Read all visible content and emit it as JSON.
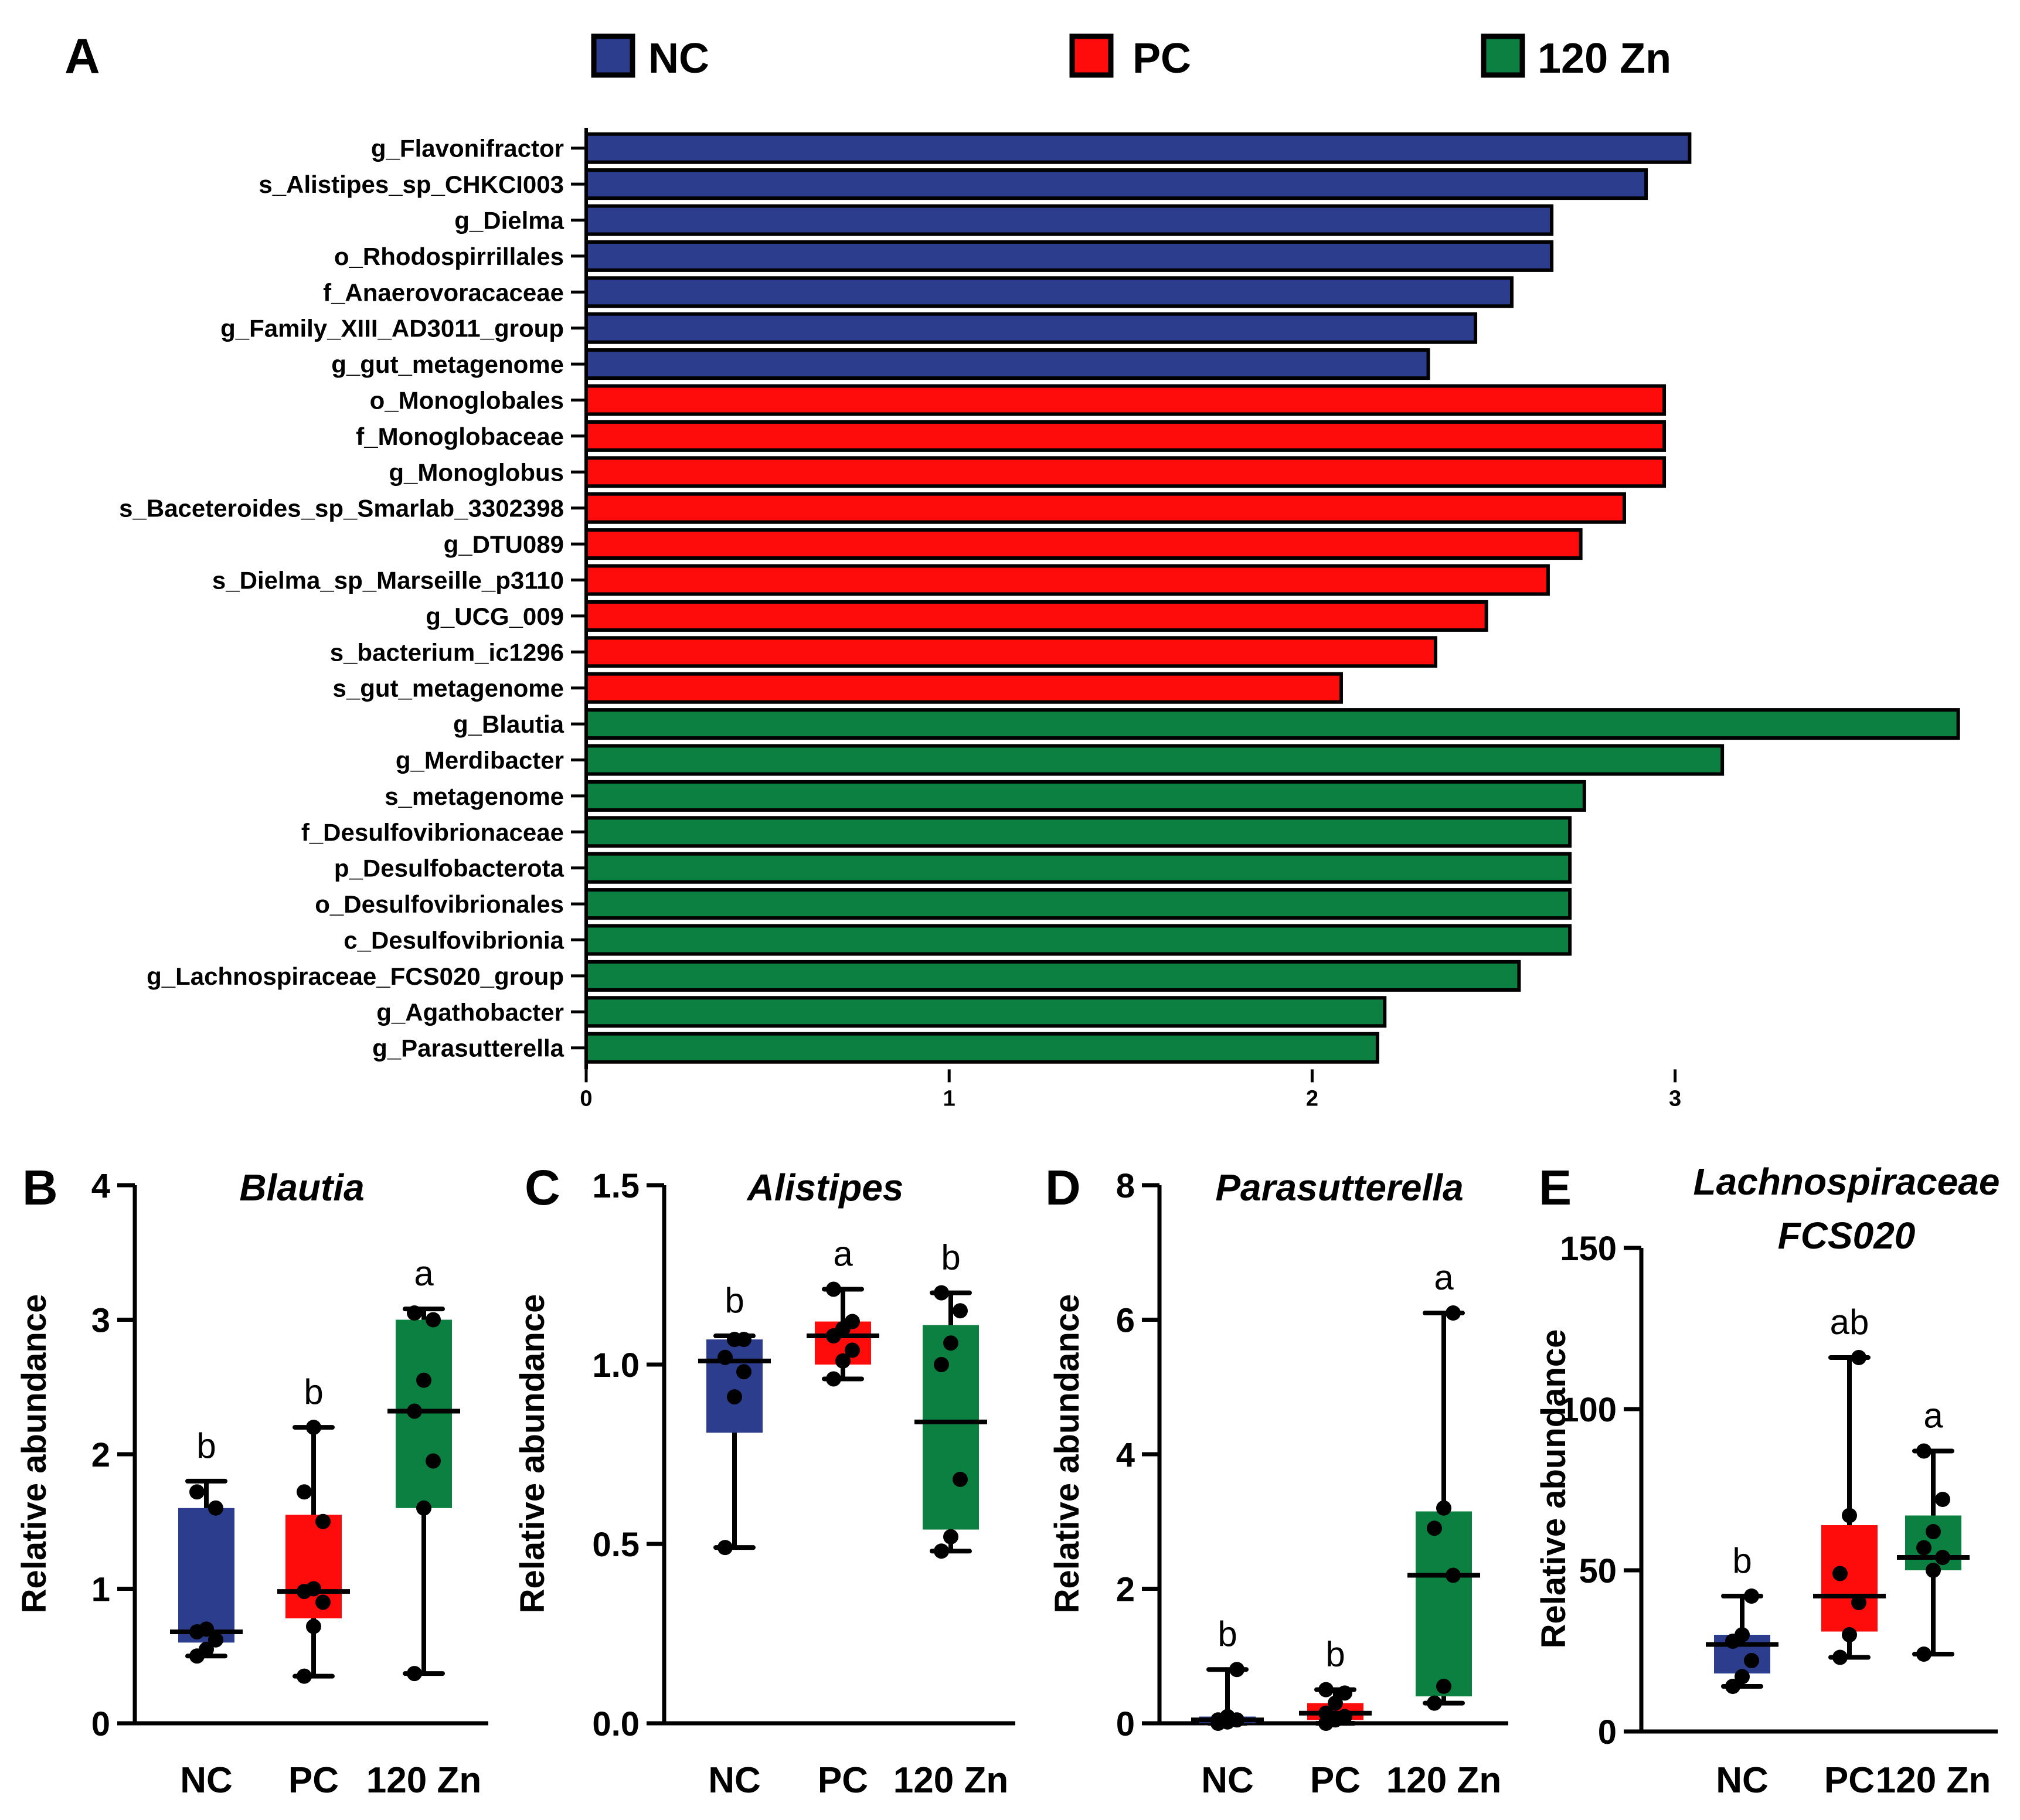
{
  "panel_letters": {
    "A": "A",
    "B": "B",
    "C": "C",
    "D": "D",
    "E": "E"
  },
  "legend": [
    {
      "label": "NC",
      "color": "#2b3d8c"
    },
    {
      "label": "PC",
      "color": "#fe0c0c"
    },
    {
      "label": "120 Zn",
      "color": "#0b8040"
    }
  ],
  "chart_data": [
    {
      "id": "A",
      "type": "bar",
      "orientation": "horizontal",
      "title": "",
      "xlabel": "",
      "ylabel": "",
      "xlim": [
        0,
        3.8
      ],
      "xticks": [
        0,
        1,
        2,
        3
      ],
      "categories": [
        "g_Flavonifractor",
        "s_Alistipes_sp_CHKCI003",
        "g_Dielma",
        "o_Rhodospirrillales",
        "f_Anaerovoracaceae",
        "g_Family_XIII_AD3011_group",
        "g_gut_metagenome",
        "o_Monoglobales",
        "f_Monoglobaceae",
        "g_Monoglobus",
        "s_Baceteroides_sp_Smarlab_3302398",
        "g_DTU089",
        "s_Dielma_sp_Marseille_p3110",
        "g_UCG_009",
        "s_bacterium_ic1296",
        "s_gut_metagenome",
        "g_Blautia",
        "g_Merdibacter",
        "s_metagenome",
        "f_Desulfovibrionaceae",
        "p_Desulfobacterota",
        "o_Desulfovibrionales",
        "c_Desulfovibrionia",
        "g_Lachnospiraceae_FCS020_group",
        "g_Agathobacter",
        "g_Parasutterella"
      ],
      "values": [
        3.04,
        2.92,
        2.66,
        2.66,
        2.55,
        2.45,
        2.32,
        2.97,
        2.97,
        2.97,
        2.86,
        2.74,
        2.65,
        2.48,
        2.34,
        2.08,
        3.78,
        3.13,
        2.75,
        2.71,
        2.71,
        2.71,
        2.71,
        2.57,
        2.2,
        2.18
      ],
      "groups": [
        "NC",
        "NC",
        "NC",
        "NC",
        "NC",
        "NC",
        "NC",
        "PC",
        "PC",
        "PC",
        "PC",
        "PC",
        "PC",
        "PC",
        "PC",
        "PC",
        "120 Zn",
        "120 Zn",
        "120 Zn",
        "120 Zn",
        "120 Zn",
        "120 Zn",
        "120 Zn",
        "120 Zn",
        "120 Zn",
        "120 Zn"
      ]
    },
    {
      "id": "B",
      "type": "box",
      "title": "Blautia",
      "ylabel": "Relative abundance",
      "ylim": [
        0,
        4
      ],
      "yticks": [
        0,
        1,
        2,
        3,
        4
      ],
      "categories": [
        "NC",
        "PC",
        "120 Zn"
      ],
      "boxes": [
        {
          "group": "NC",
          "whisker_low": 0.5,
          "q1": 0.6,
          "median": 0.68,
          "q3": 1.6,
          "whisker_high": 1.8,
          "letter": "b",
          "points": [
            0.5,
            0.55,
            0.62,
            0.68,
            0.7,
            1.6,
            1.72
          ]
        },
        {
          "group": "PC",
          "whisker_low": 0.35,
          "q1": 0.78,
          "median": 0.98,
          "q3": 1.55,
          "whisker_high": 2.2,
          "letter": "b",
          "points": [
            0.35,
            0.72,
            0.9,
            0.98,
            1.0,
            1.5,
            1.72,
            2.2
          ]
        },
        {
          "group": "120 Zn",
          "whisker_low": 0.37,
          "q1": 1.6,
          "median": 2.32,
          "q3": 3.0,
          "whisker_high": 3.08,
          "letter": "a",
          "points": [
            0.37,
            1.6,
            1.95,
            2.32,
            2.55,
            3.0,
            3.05
          ]
        }
      ]
    },
    {
      "id": "C",
      "type": "box",
      "title": "Alistipes",
      "ylabel": "Relative abundance",
      "ylim": [
        0,
        1.5
      ],
      "yticks": [
        0.0,
        0.5,
        1.0,
        1.5
      ],
      "ytick_labels": [
        "0.0",
        "0.5",
        "1.0",
        "1.5"
      ],
      "categories": [
        "NC",
        "PC",
        "120 Zn"
      ],
      "boxes": [
        {
          "group": "NC",
          "whisker_low": 0.49,
          "q1": 0.81,
          "median": 1.01,
          "q3": 1.07,
          "whisker_high": 1.08,
          "letter": "b",
          "points": [
            0.49,
            0.91,
            0.98,
            1.02,
            1.07,
            1.07
          ]
        },
        {
          "group": "PC",
          "whisker_low": 0.96,
          "q1": 1.0,
          "median": 1.08,
          "q3": 1.12,
          "whisker_high": 1.21,
          "letter": "a",
          "points": [
            0.96,
            1.01,
            1.04,
            1.08,
            1.1,
            1.12,
            1.21
          ]
        },
        {
          "group": "120 Zn",
          "whisker_low": 0.48,
          "q1": 0.54,
          "median": 0.84,
          "q3": 1.11,
          "whisker_high": 1.2,
          "letter": "b",
          "points": [
            0.48,
            0.52,
            0.68,
            1.0,
            1.06,
            1.15,
            1.2
          ]
        }
      ]
    },
    {
      "id": "D",
      "type": "box",
      "title": "Parasutterella",
      "ylabel": "Relative abundance",
      "ylim": [
        0,
        8
      ],
      "yticks": [
        0,
        2,
        4,
        6,
        8
      ],
      "categories": [
        "NC",
        "PC",
        "120 Zn"
      ],
      "boxes": [
        {
          "group": "NC",
          "whisker_low": 0.0,
          "q1": 0.0,
          "median": 0.05,
          "q3": 0.1,
          "whisker_high": 0.8,
          "letter": "b",
          "points": [
            0.0,
            0.02,
            0.05,
            0.05,
            0.1,
            0.8
          ]
        },
        {
          "group": "PC",
          "whisker_low": 0.0,
          "q1": 0.05,
          "median": 0.15,
          "q3": 0.3,
          "whisker_high": 0.5,
          "letter": "b",
          "points": [
            0.0,
            0.05,
            0.1,
            0.15,
            0.3,
            0.45,
            0.5
          ]
        },
        {
          "group": "120 Zn",
          "whisker_low": 0.3,
          "q1": 0.4,
          "median": 2.2,
          "q3": 3.15,
          "whisker_high": 6.1,
          "letter": "a",
          "points": [
            0.3,
            0.55,
            2.2,
            2.9,
            3.2,
            6.1
          ]
        }
      ]
    },
    {
      "id": "E",
      "type": "box",
      "title": "Lachnospiraceae FCS020",
      "title_lines": [
        "Lachnospiraceae",
        "FCS020"
      ],
      "ylabel": "Relative abundance",
      "ylim": [
        0,
        150
      ],
      "yticks": [
        0,
        50,
        100,
        150
      ],
      "categories": [
        "NC",
        "PC",
        "120 Zn"
      ],
      "boxes": [
        {
          "group": "NC",
          "whisker_low": 14,
          "q1": 18,
          "median": 27,
          "q3": 30,
          "whisker_high": 42,
          "letter": "b",
          "points": [
            14,
            17,
            22,
            28,
            30,
            42
          ]
        },
        {
          "group": "PC",
          "whisker_low": 23,
          "q1": 31,
          "median": 42,
          "q3": 64,
          "whisker_high": 116,
          "letter": "ab",
          "points": [
            23,
            30,
            40,
            49,
            67,
            116
          ]
        },
        {
          "group": "120 Zn",
          "whisker_low": 24,
          "q1": 50,
          "median": 54,
          "q3": 67,
          "whisker_high": 87,
          "letter": "a",
          "points": [
            24,
            50,
            54,
            57,
            62,
            72,
            87
          ]
        }
      ]
    }
  ]
}
